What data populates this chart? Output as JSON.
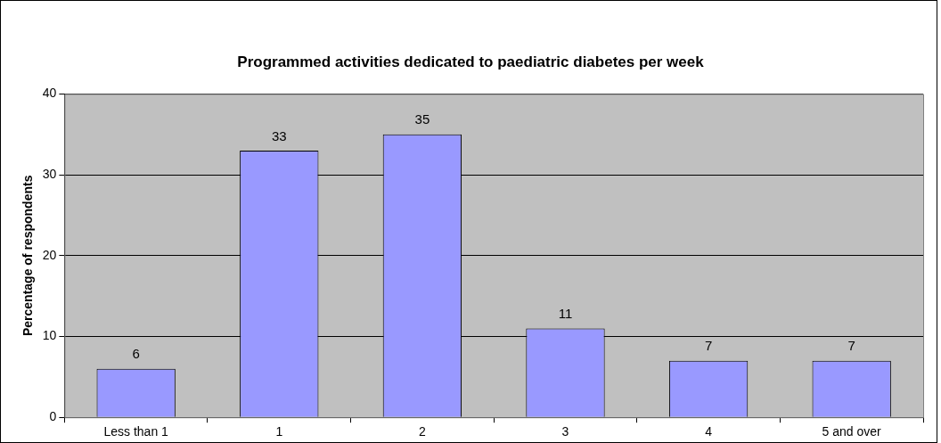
{
  "chart_data": {
    "type": "bar",
    "title": "Programmed activities dedicated to paediatric diabetes per week",
    "ylabel": "Percentage of respondents",
    "categories": [
      "Less than 1",
      "1",
      "2",
      "3",
      "4",
      "5 and over"
    ],
    "values": [
      6,
      33,
      35,
      11,
      7,
      7
    ],
    "color": "#9999ff",
    "ylim": [
      0,
      40
    ],
    "yticks": [
      0,
      10,
      20,
      30,
      40
    ],
    "grid": "y",
    "data_labels": true
  }
}
